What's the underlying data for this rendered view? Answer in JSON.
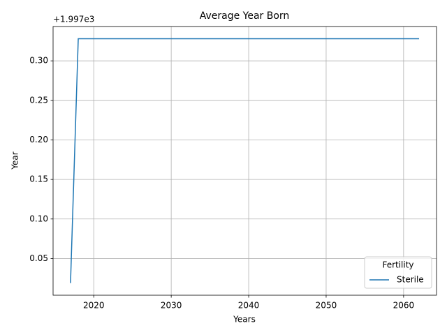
{
  "chart_data": {
    "type": "line",
    "title": "Average Year Born",
    "x_label": "Years",
    "y_label": "Year",
    "y_offset_text": "+1.997e3",
    "x": [
      2017,
      2018,
      2019,
      2020,
      2021,
      2022,
      2023,
      2024,
      2025,
      2026,
      2027,
      2028,
      2029,
      2030,
      2031,
      2032,
      2033,
      2034,
      2035,
      2036,
      2037,
      2038,
      2039,
      2040,
      2041,
      2042,
      2043,
      2044,
      2045,
      2046,
      2047,
      2048,
      2049,
      2050,
      2051,
      2052,
      2053,
      2054,
      2055,
      2056,
      2057,
      2058,
      2059,
      2060,
      2061,
      2062
    ],
    "series": [
      {
        "name": "Sterile",
        "color": "#1f77b4",
        "values": [
          0.019,
          0.328,
          0.328,
          0.328,
          0.328,
          0.328,
          0.328,
          0.328,
          0.328,
          0.328,
          0.328,
          0.328,
          0.328,
          0.328,
          0.328,
          0.328,
          0.328,
          0.328,
          0.328,
          0.328,
          0.328,
          0.328,
          0.328,
          0.328,
          0.328,
          0.328,
          0.328,
          0.328,
          0.328,
          0.328,
          0.328,
          0.328,
          0.328,
          0.328,
          0.328,
          0.328,
          0.328,
          0.328,
          0.328,
          0.328,
          0.328,
          0.328,
          0.328,
          0.328,
          0.328,
          0.328
        ]
      }
    ],
    "legend_title": "Fertility",
    "legend": "lower right",
    "xlim": [
      2014.75,
      2064.25
    ],
    "xticks": [
      2020,
      2030,
      2040,
      2050,
      2060
    ],
    "ylim": [
      0.0036,
      0.3434
    ],
    "yticks": [
      0.05,
      0.1,
      0.15,
      0.2,
      0.25,
      0.3
    ],
    "grid": true
  }
}
